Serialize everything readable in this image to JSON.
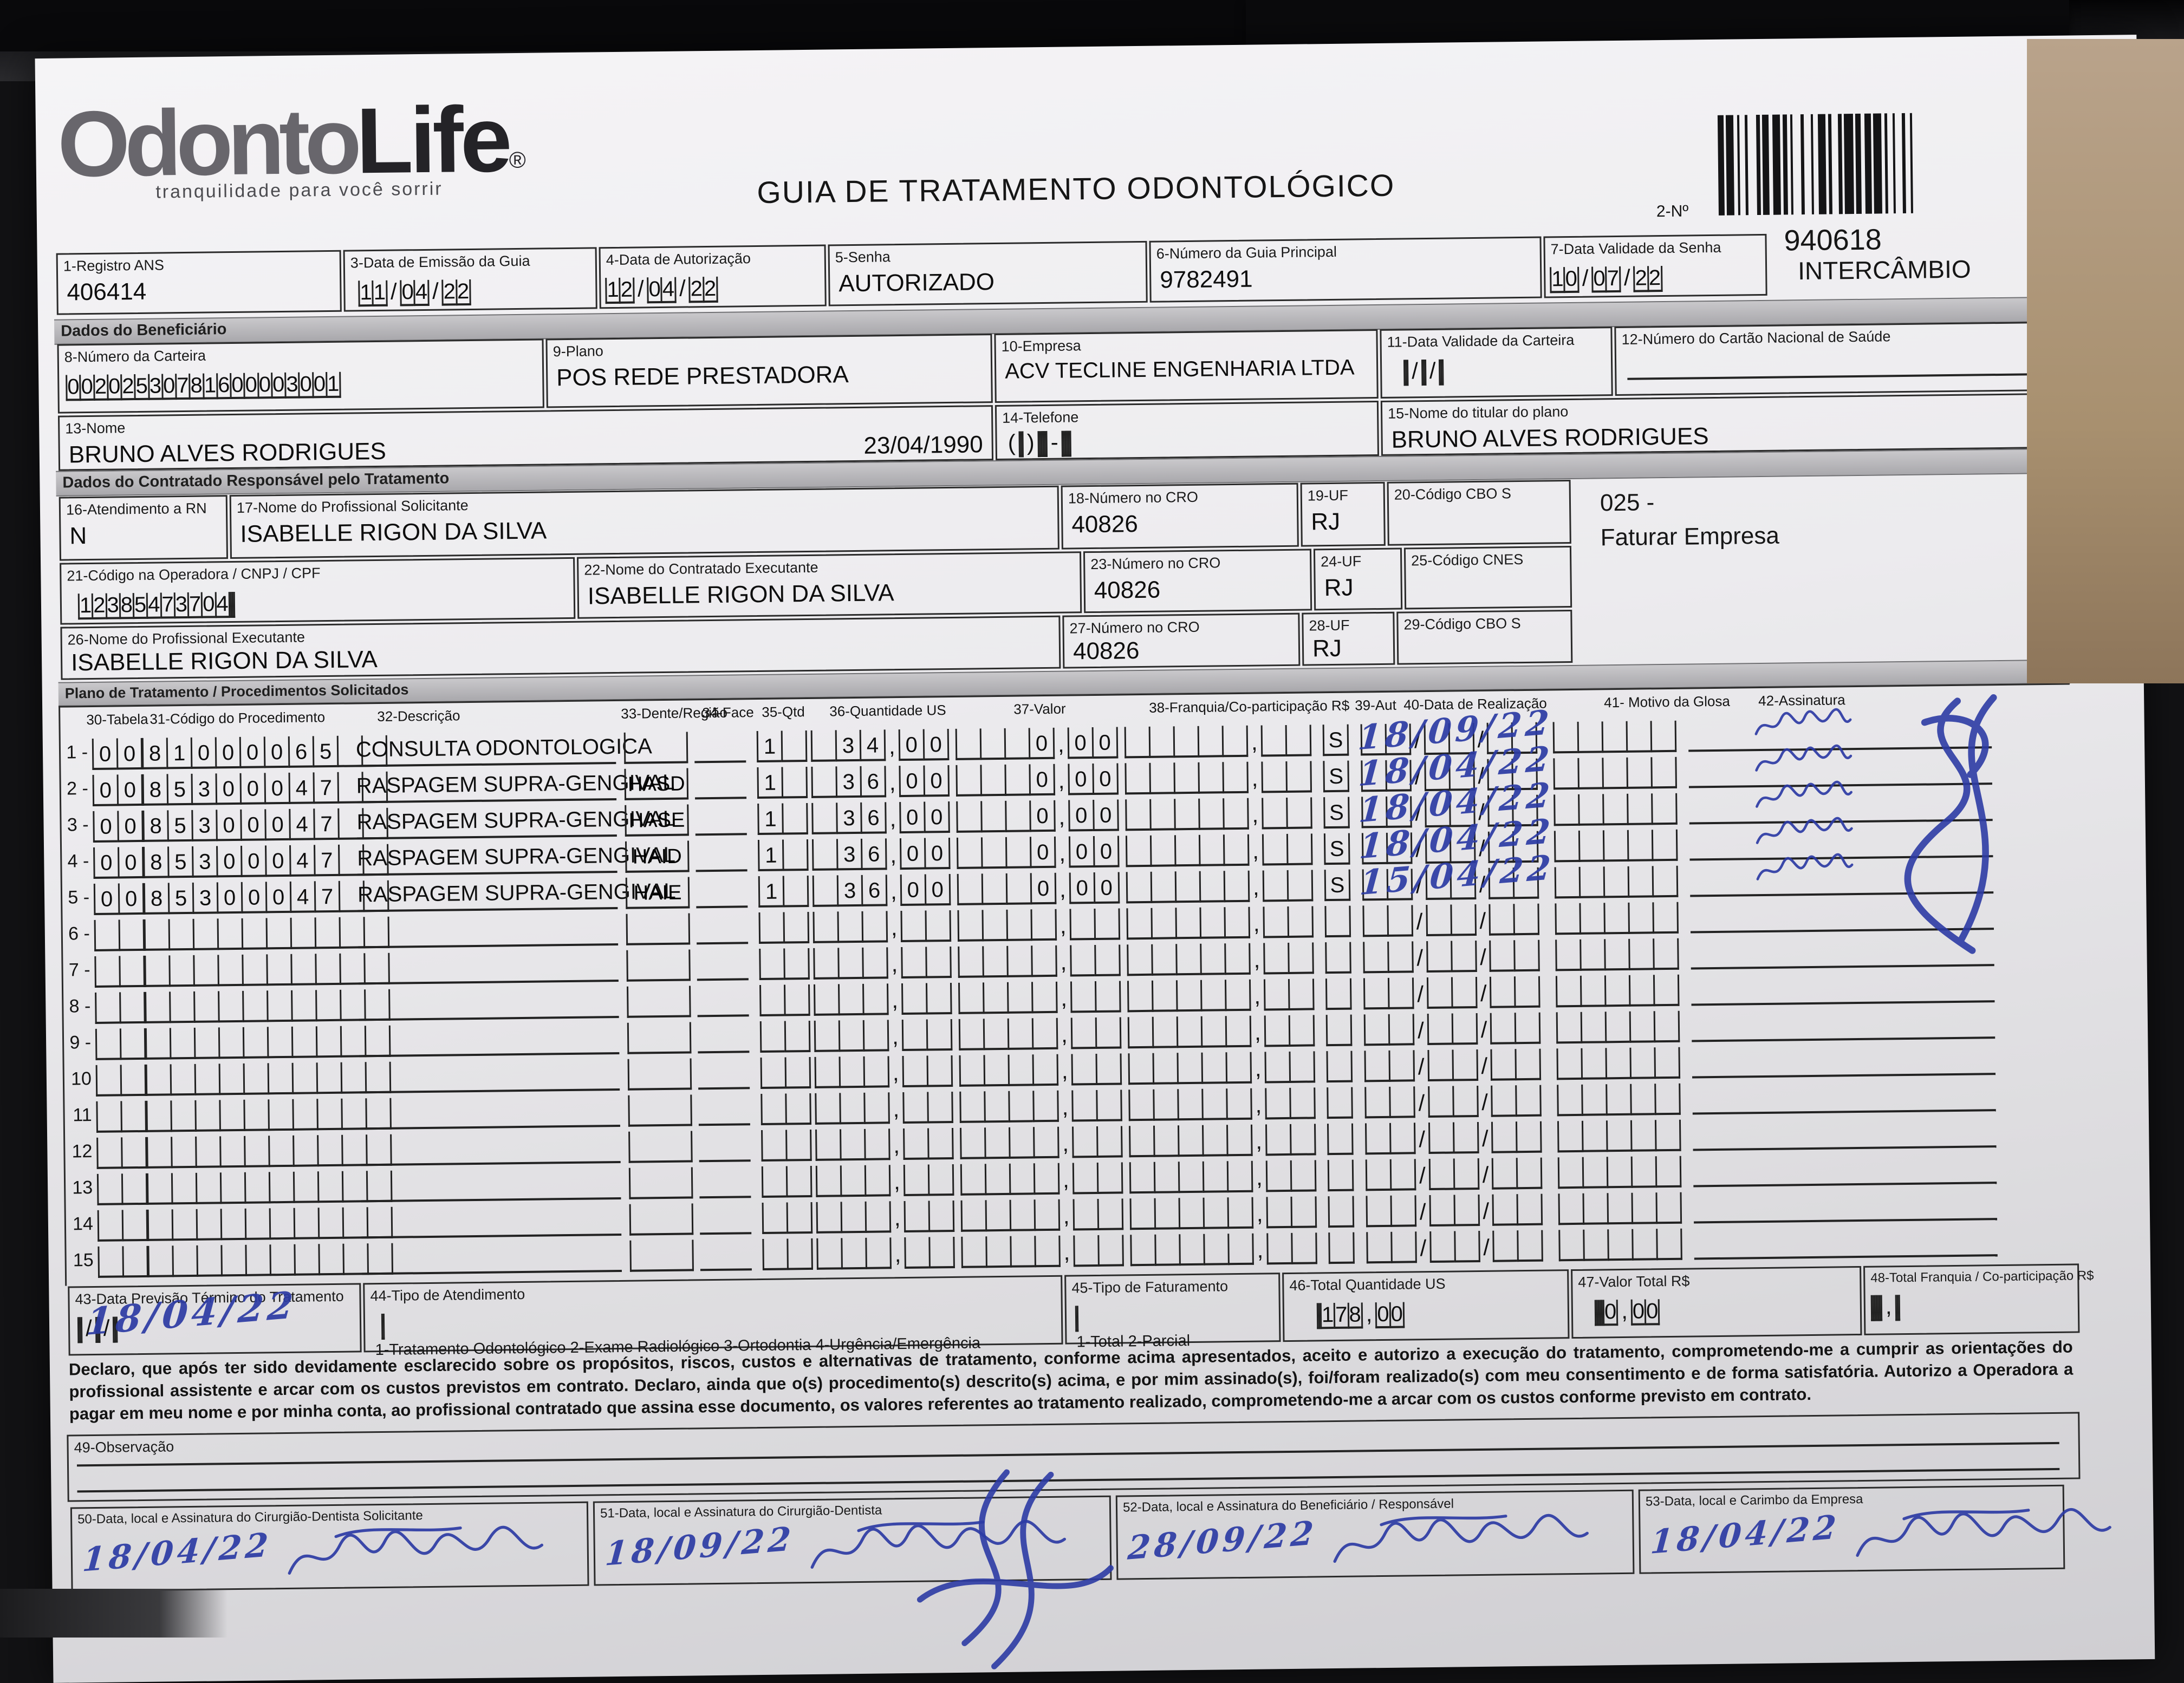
{
  "colors": {
    "ink_blue": "#2c3ba4",
    "paper": "#efeef1",
    "desk_dark": "#121214",
    "wood_tan": "#a8906f"
  },
  "header": {
    "logo_primary": "Odonto",
    "logo_secondary": "Life",
    "logo_reg": "®",
    "logo_tagline": "tranquilidade para você sorrir",
    "title": "GUIA DE TRATAMENTO ODONTOLÓGICO",
    "form_number_label": "2-Nº",
    "form_number": "940618",
    "form_type": "INTERCÂMBIO"
  },
  "sections": {
    "beneficiario": "Dados do Beneficiário",
    "contratado": "Dados do Contratado Responsável pelo Tratamento",
    "plano": "Plano de Tratamento / Procedimentos Solicitados"
  },
  "fields": {
    "registro_ans": {
      "label": "1-Registro ANS",
      "value": "406414"
    },
    "emissao": {
      "label": "3-Data de Emissão da Guia",
      "digits": "110422"
    },
    "autorizacao": {
      "label": "4-Data de Autorização",
      "digits": "120422"
    },
    "senha": {
      "label": "5-Senha",
      "value": "AUTORIZADO"
    },
    "guia_principal": {
      "label": "6-Número da Guia Principal",
      "value": "9782491"
    },
    "validade_senha": {
      "label": "7-Data Validade da Senha",
      "digits": "100722"
    },
    "carteira": {
      "label": "8-Número da Carteira",
      "digits": "00202530781600003001"
    },
    "plano": {
      "label": "9-Plano",
      "value": "POS REDE PRESTADORA"
    },
    "empresa": {
      "label": "10-Empresa",
      "value": "ACV TECLINE ENGENHARIA LTDA"
    },
    "validade_carteira": {
      "label": "11-Data Validade da Carteira",
      "digits": ""
    },
    "cartao_saude": {
      "label": "12-Número do Cartão Nacional de Saúde",
      "value": ""
    },
    "nome": {
      "label": "13-Nome",
      "value": "BRUNO ALVES RODRIGUES",
      "nascimento": "23/04/1990"
    },
    "telefone": {
      "label": "14-Telefone",
      "digits": ""
    },
    "titular": {
      "label": "15-Nome do titular do plano",
      "value": "BRUNO ALVES RODRIGUES"
    },
    "atendimento_rn": {
      "label": "16-Atendimento a RN",
      "value": "N"
    },
    "prof_solicitante": {
      "label": "17-Nome do Profissional Solicitante",
      "value": "ISABELLE RIGON DA SILVA"
    },
    "cro_18": {
      "label": "18-Número no CRO",
      "value": "40826"
    },
    "uf_19": {
      "label": "19-UF",
      "value": "RJ"
    },
    "cbo_20": {
      "label": "20-Código CBO S",
      "value": ""
    },
    "nota_codigo": {
      "line1": "025 -",
      "line2": "Faturar Empresa"
    },
    "codigo_operadora": {
      "label": "21-Código na Operadora / CNPJ / CPF",
      "digits": "12385473704   "
    },
    "contratado_exec": {
      "label": "22-Nome do Contratado Executante",
      "value": "ISABELLE RIGON DA SILVA"
    },
    "cro_23": {
      "label": "23-Número no CRO",
      "value": "40826"
    },
    "uf_24": {
      "label": "24-UF",
      "value": "RJ"
    },
    "cnes_25": {
      "label": "25-Código CNES",
      "value": ""
    },
    "prof_executante": {
      "label": "26-Nome do Profissional Executante",
      "value": "ISABELLE RIGON DA SILVA"
    },
    "cro_27": {
      "label": "27-Número no CRO",
      "value": "40826"
    },
    "uf_28": {
      "label": "28-UF",
      "value": "RJ"
    },
    "cbo_29": {
      "label": "29-Código CBO S",
      "value": ""
    }
  },
  "table": {
    "headers": [
      "30-Tabela",
      "31-Código do Procedimento",
      "32-Descrição",
      "33-Dente/Região",
      "34-Face",
      "35-Qtd",
      "36-Quantidade US",
      "37-Valor",
      "38-Franquia/Co-participação R$",
      "39-Aut",
      "40-Data de Realização",
      "41- Motivo da Glosa",
      "42-Assinatura"
    ],
    "rows": [
      {
        "n": "1 -",
        "tabela": "00",
        "codigo": "81000065  ",
        "descricao": "CONSULTA ODONTOLOGICA",
        "dente": "",
        "qtd": "1 ",
        "us": " 3400",
        "valor": "   000",
        "franquia": "",
        "aut": "S",
        "data_realizacao": "18/09/22",
        "assinado": true
      },
      {
        "n": "2 -",
        "tabela": "00",
        "codigo": "85300047  ",
        "descricao": "RASPAGEM SUPRA-GENGIVAL",
        "dente": "HASD",
        "qtd": "1 ",
        "us": " 3600",
        "valor": "   000",
        "franquia": "",
        "aut": "S",
        "data_realizacao": "18/04/22",
        "assinado": true
      },
      {
        "n": "3 -",
        "tabela": "00",
        "codigo": "85300047  ",
        "descricao": "RASPAGEM SUPRA-GENGIVAL",
        "dente": "HASE",
        "qtd": "1 ",
        "us": " 3600",
        "valor": "   000",
        "franquia": "",
        "aut": "S",
        "data_realizacao": "18/04/22",
        "assinado": true
      },
      {
        "n": "4 -",
        "tabela": "00",
        "codigo": "85300047  ",
        "descricao": "RASPAGEM SUPRA-GENGIVAL",
        "dente": "HAID",
        "qtd": "1 ",
        "us": " 3600",
        "valor": "   000",
        "franquia": "",
        "aut": "S",
        "data_realizacao": "18/04/22",
        "assinado": true
      },
      {
        "n": "5 -",
        "tabela": "00",
        "codigo": "85300047  ",
        "descricao": "RASPAGEM SUPRA-GENGIVAL",
        "dente": "HAIE",
        "qtd": "1 ",
        "us": " 3600",
        "valor": "   000",
        "franquia": "",
        "aut": "S",
        "data_realizacao": "15/04/22",
        "assinado": true
      },
      {
        "n": "6 -",
        "tabela": "",
        "codigo": "",
        "descricao": "",
        "dente": "",
        "qtd": "",
        "us": "",
        "valor": "",
        "franquia": "",
        "aut": "",
        "data_realizacao": "",
        "assinado": false
      },
      {
        "n": "7 -",
        "tabela": "",
        "codigo": "",
        "descricao": "",
        "dente": "",
        "qtd": "",
        "us": "",
        "valor": "",
        "franquia": "",
        "aut": "",
        "data_realizacao": "",
        "assinado": false
      },
      {
        "n": "8 -",
        "tabela": "",
        "codigo": "",
        "descricao": "",
        "dente": "",
        "qtd": "",
        "us": "",
        "valor": "",
        "franquia": "",
        "aut": "",
        "data_realizacao": "",
        "assinado": false
      },
      {
        "n": "9 -",
        "tabela": "",
        "codigo": "",
        "descricao": "",
        "dente": "",
        "qtd": "",
        "us": "",
        "valor": "",
        "franquia": "",
        "aut": "",
        "data_realizacao": "",
        "assinado": false
      },
      {
        "n": "10",
        "tabela": "",
        "codigo": "",
        "descricao": "",
        "dente": "",
        "qtd": "",
        "us": "",
        "valor": "",
        "franquia": "",
        "aut": "",
        "data_realizacao": "",
        "assinado": false
      },
      {
        "n": "11",
        "tabela": "",
        "codigo": "",
        "descricao": "",
        "dente": "",
        "qtd": "",
        "us": "",
        "valor": "",
        "franquia": "",
        "aut": "",
        "data_realizacao": "",
        "assinado": false
      },
      {
        "n": "12",
        "tabela": "",
        "codigo": "",
        "descricao": "",
        "dente": "",
        "qtd": "",
        "us": "",
        "valor": "",
        "franquia": "",
        "aut": "",
        "data_realizacao": "",
        "assinado": false
      },
      {
        "n": "13",
        "tabela": "",
        "codigo": "",
        "descricao": "",
        "dente": "",
        "qtd": "",
        "us": "",
        "valor": "",
        "franquia": "",
        "aut": "",
        "data_realizacao": "",
        "assinado": false
      },
      {
        "n": "14",
        "tabela": "",
        "codigo": "",
        "descricao": "",
        "dente": "",
        "qtd": "",
        "us": "",
        "valor": "",
        "franquia": "",
        "aut": "",
        "data_realizacao": "",
        "assinado": false
      },
      {
        "n": "15",
        "tabela": "",
        "codigo": "",
        "descricao": "",
        "dente": "",
        "qtd": "",
        "us": "",
        "valor": "",
        "franquia": "",
        "aut": "",
        "data_realizacao": "",
        "assinado": false
      }
    ]
  },
  "totals": {
    "previsao": {
      "label": "43-Data Previsão Término do Tratamento",
      "handwriting": "18/04/22",
      "digits": ""
    },
    "tipo_atendimento": {
      "label": "44-Tipo de Atendimento",
      "options": "1-Tratamento Odontológico  2-Exame Radiológico  3-Ortodontia  4-Urgência/Emergência"
    },
    "tipo_faturamento": {
      "label": "45-Tipo de Faturamento",
      "options": "1-Total  2-Parcial"
    },
    "total_us": {
      "label": "46-Total Quantidade US",
      "digits": "  17800"
    },
    "valor_total": {
      "label": "47-Valor Total R$",
      "digits": "     000"
    },
    "total_franquia": {
      "label": "48-Total Franquia / Co-participação R$",
      "digits": ""
    }
  },
  "declaration": "Declaro, que após ter sido devidamente esclarecido sobre os propósitos, riscos, custos e alternativas de tratamento, conforme acima apresentados, aceito e autorizo a execução do tratamento, comprometendo-me a cumprir as orientações do profissional assistente e arcar com os custos previstos em contrato. Declaro, ainda que o(s) procedimento(s) descrito(s) acima, e por mim assinado(s), foi/foram realizado(s) com meu consentimento e de forma satisfatória. Autorizo a Operadora a pagar em meu nome e por minha conta, ao profissional contratado que assina esse documento, os valores referentes ao tratamento realizado, comprometendo-me a arcar com os custos conforme previsto em contrato.",
  "observacao_label": "49-Observação",
  "signature_boxes": [
    {
      "label": "50-Data, local e Assinatura do Cirurgião-Dentista Solicitante",
      "handwriting": "18/04/22"
    },
    {
      "label": "51-Data, local e Assinatura do Cirurgião-Dentista",
      "handwriting": "18/09/22"
    },
    {
      "label": "52-Data, local e Assinatura do Beneficiário / Responsável",
      "handwriting": "28/09/22"
    },
    {
      "label": "53-Data, local e Carimbo da Empresa",
      "handwriting": "18/04/22"
    }
  ]
}
